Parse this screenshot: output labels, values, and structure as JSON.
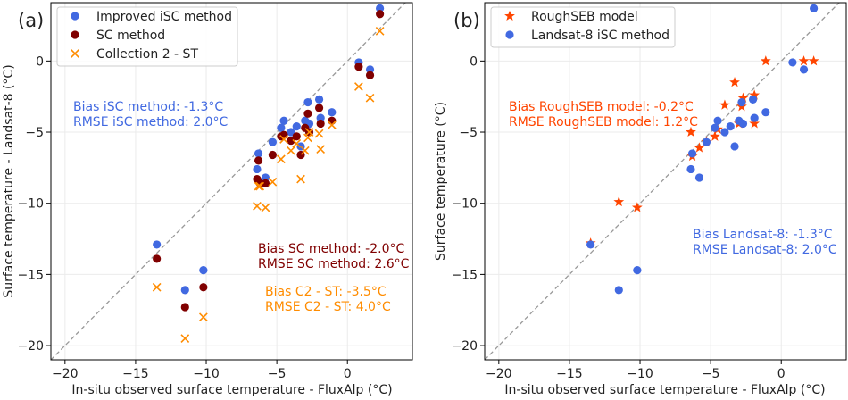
{
  "chart_data": [
    {
      "type": "scatter",
      "panel_label": "(a)",
      "xlabel": "In-situ observed surface temperature - FluxAlp (°C)",
      "ylabel": "Surface temperature - Landsat-8 (°C)",
      "xlim": [
        -21,
        4.6
      ],
      "ylim": [
        -21,
        4.1
      ],
      "xticks": [
        -20,
        -15,
        -10,
        -5,
        0
      ],
      "yticks": [
        -20,
        -15,
        -10,
        -5,
        0
      ],
      "xtick_labels": [
        "−20",
        "−15",
        "−10",
        "−5",
        "0"
      ],
      "ytick_labels": [
        "−20",
        "−15",
        "−10",
        "−5",
        "0"
      ],
      "grid": true,
      "identity_line": true,
      "legend_position": "top-left",
      "series": [
        {
          "name": "Improved iSC method",
          "marker": "circle",
          "color": "#4169e1",
          "points": [
            [
              2.3,
              3.7
            ],
            [
              0.8,
              -0.1
            ],
            [
              1.6,
              -0.6
            ],
            [
              -1.1,
              -3.6
            ],
            [
              -1.9,
              -4.0
            ],
            [
              -2.0,
              -2.7
            ],
            [
              -2.8,
              -2.9
            ],
            [
              -3.0,
              -4.2
            ],
            [
              -2.7,
              -4.4
            ],
            [
              -3.3,
              -6.0
            ],
            [
              -3.6,
              -4.6
            ],
            [
              -4.0,
              -5.0
            ],
            [
              -4.5,
              -4.2
            ],
            [
              -4.7,
              -4.7
            ],
            [
              -5.3,
              -5.7
            ],
            [
              -5.8,
              -8.2
            ],
            [
              -6.3,
              -6.5
            ],
            [
              -6.4,
              -7.6
            ],
            [
              -6.2,
              -8.5
            ],
            [
              -10.2,
              -14.7
            ],
            [
              -11.5,
              -16.1
            ],
            [
              -13.5,
              -12.9
            ]
          ]
        },
        {
          "name": "SC method",
          "marker": "circle",
          "color": "#800000",
          "points": [
            [
              2.3,
              3.3
            ],
            [
              0.8,
              -0.4
            ],
            [
              1.6,
              -1.0
            ],
            [
              -1.1,
              -4.2
            ],
            [
              -1.9,
              -4.4
            ],
            [
              -2.0,
              -3.3
            ],
            [
              -2.8,
              -3.7
            ],
            [
              -3.0,
              -4.7
            ],
            [
              -2.7,
              -5.0
            ],
            [
              -3.3,
              -6.6
            ],
            [
              -3.6,
              -5.3
            ],
            [
              -4.0,
              -5.6
            ],
            [
              -4.5,
              -5.2
            ],
            [
              -4.7,
              -5.3
            ],
            [
              -5.3,
              -6.6
            ],
            [
              -5.8,
              -8.6
            ],
            [
              -6.3,
              -7.0
            ],
            [
              -6.4,
              -8.3
            ],
            [
              -6.2,
              -8.6
            ],
            [
              -10.2,
              -15.9
            ],
            [
              -11.5,
              -17.3
            ],
            [
              -13.5,
              -13.9
            ]
          ]
        },
        {
          "name": "Collection 2 - ST",
          "marker": "x",
          "color": "#ff8c00",
          "points": [
            [
              2.3,
              2.1
            ],
            [
              0.8,
              -1.8
            ],
            [
              1.6,
              -2.6
            ],
            [
              -1.1,
              -4.5
            ],
            [
              -1.9,
              -6.2
            ],
            [
              -2.0,
              -5.1
            ],
            [
              -2.8,
              -5.4
            ],
            [
              -3.0,
              -6.3
            ],
            [
              -2.7,
              -5.0
            ],
            [
              -3.3,
              -8.3
            ],
            [
              -3.6,
              -5.8
            ],
            [
              -4.0,
              -6.3
            ],
            [
              -4.5,
              -5.5
            ],
            [
              -4.7,
              -6.9
            ],
            [
              -5.3,
              -8.5
            ],
            [
              -5.8,
              -10.3
            ],
            [
              -6.3,
              -8.8
            ],
            [
              -6.4,
              -10.2
            ],
            [
              -6.2,
              -8.8
            ],
            [
              -10.2,
              -18.0
            ],
            [
              -11.5,
              -19.5
            ],
            [
              -13.5,
              -15.9
            ]
          ]
        }
      ],
      "annotations": [
        {
          "lines": [
            "Bias iSC method: -1.3°C",
            "RMSE iSC method: 2.0°C"
          ],
          "color": "#4169e1"
        },
        {
          "lines": [
            "Bias SC method: -2.0°C",
            "RMSE SC method: 2.6°C"
          ],
          "color": "#800000"
        },
        {
          "lines": [
            "Bias C2 - ST: -3.5°C",
            "RMSE C2 - ST: 4.0°C"
          ],
          "color": "#ff8c00"
        }
      ]
    },
    {
      "type": "scatter",
      "panel_label": "(b)",
      "xlabel": "In-situ observed surface temperature - FluxAlp (°C)",
      "ylabel": "Surface temperature (°C)",
      "xlim": [
        -21,
        4.6
      ],
      "ylim": [
        -21,
        4.1
      ],
      "xticks": [
        -20,
        -15,
        -10,
        -5,
        0
      ],
      "yticks": [
        -20,
        -15,
        -10,
        -5,
        0
      ],
      "xtick_labels": [
        "−20",
        "−15",
        "−10",
        "−5",
        "0"
      ],
      "ytick_labels": [
        "−20",
        "−15",
        "−10",
        "−5",
        "0"
      ],
      "grid": true,
      "identity_line": true,
      "legend_position": "top-left",
      "series": [
        {
          "name": "RoughSEB model",
          "marker": "star",
          "color": "#ff4500",
          "points": [
            [
              2.3,
              0.0
            ],
            [
              1.6,
              0.0
            ],
            [
              -1.1,
              0.0
            ],
            [
              -1.9,
              -2.4
            ],
            [
              -1.9,
              -4.4
            ],
            [
              -2.7,
              -2.6
            ],
            [
              -2.8,
              -3.2
            ],
            [
              -3.3,
              -1.5
            ],
            [
              -3.0,
              -4.4
            ],
            [
              -4.0,
              -3.1
            ],
            [
              -4.5,
              -4.8
            ],
            [
              -4.7,
              -5.3
            ],
            [
              -5.3,
              -5.7
            ],
            [
              -5.8,
              -6.1
            ],
            [
              -6.3,
              -6.7
            ],
            [
              -6.4,
              -5.0
            ],
            [
              -10.2,
              -10.3
            ],
            [
              -11.5,
              -9.9
            ],
            [
              -13.5,
              -12.8
            ]
          ]
        },
        {
          "name": "Landsat-8 iSC method",
          "marker": "circle",
          "color": "#4169e1",
          "points": [
            [
              2.3,
              3.7
            ],
            [
              0.8,
              -0.1
            ],
            [
              1.6,
              -0.6
            ],
            [
              -1.1,
              -3.6
            ],
            [
              -1.9,
              -4.0
            ],
            [
              -2.0,
              -2.7
            ],
            [
              -2.8,
              -2.9
            ],
            [
              -3.0,
              -4.2
            ],
            [
              -2.7,
              -4.4
            ],
            [
              -3.3,
              -6.0
            ],
            [
              -3.6,
              -4.6
            ],
            [
              -4.0,
              -5.0
            ],
            [
              -4.5,
              -4.2
            ],
            [
              -4.7,
              -4.7
            ],
            [
              -5.3,
              -5.7
            ],
            [
              -5.8,
              -8.2
            ],
            [
              -6.3,
              -6.5
            ],
            [
              -6.4,
              -7.6
            ],
            [
              -10.2,
              -14.7
            ],
            [
              -11.5,
              -16.1
            ],
            [
              -13.5,
              -12.9
            ]
          ]
        }
      ],
      "annotations": [
        {
          "lines": [
            "Bias RoughSEB model: -0.2°C",
            "RMSE RoughSEB model: 1.2°C"
          ],
          "color": "#ff4500"
        },
        {
          "lines": [
            "Bias Landsat-8: -1.3°C",
            "RMSE Landsat-8: 2.0°C"
          ],
          "color": "#4169e1"
        }
      ]
    }
  ]
}
